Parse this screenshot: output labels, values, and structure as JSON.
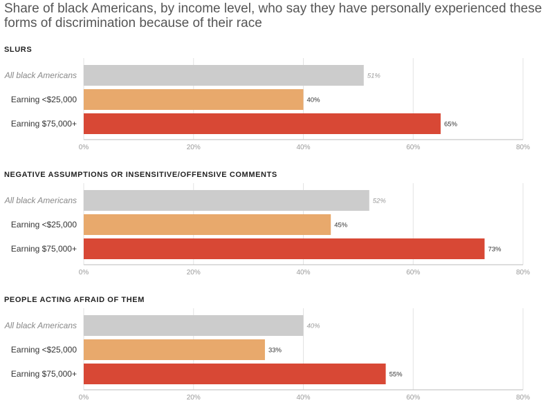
{
  "title": "Share of black Americans, by income level, who say they have personally experienced these forms of discrimination because of their race",
  "colors": {
    "All black Americans": "#cccccc",
    "Earning <$25,000": "#e8a96c",
    "Earning $75,000+": "#d84835",
    "grid": "#e3e3e3",
    "axis": "#bbbbbb"
  },
  "chart_data": [
    {
      "type": "bar",
      "orientation": "horizontal",
      "title": "SLURS",
      "categories": [
        "All black Americans",
        "Earning <$25,000",
        "Earning $75,000+"
      ],
      "values": [
        51,
        40,
        65
      ],
      "value_labels": [
        "51%",
        "40%",
        "65%"
      ],
      "xlim": [
        0,
        80
      ],
      "ticks": [
        0,
        20,
        40,
        60,
        80
      ],
      "tick_labels": [
        "0%",
        "20%",
        "40%",
        "60%",
        "80%"
      ],
      "grid": true
    },
    {
      "type": "bar",
      "orientation": "horizontal",
      "title": "NEGATIVE ASSUMPTIONS OR INSENSITIVE/OFFENSIVE COMMENTS",
      "categories": [
        "All black Americans",
        "Earning <$25,000",
        "Earning $75,000+"
      ],
      "values": [
        52,
        45,
        73
      ],
      "value_labels": [
        "52%",
        "45%",
        "73%"
      ],
      "xlim": [
        0,
        80
      ],
      "ticks": [
        0,
        20,
        40,
        60,
        80
      ],
      "tick_labels": [
        "0%",
        "20%",
        "40%",
        "60%",
        "80%"
      ],
      "grid": true
    },
    {
      "type": "bar",
      "orientation": "horizontal",
      "title": "PEOPLE ACTING AFRAID OF THEM",
      "categories": [
        "All black Americans",
        "Earning <$25,000",
        "Earning $75,000+"
      ],
      "values": [
        40,
        33,
        55
      ],
      "value_labels": [
        "40%",
        "33%",
        "55%"
      ],
      "xlim": [
        0,
        80
      ],
      "ticks": [
        0,
        20,
        40,
        60,
        80
      ],
      "tick_labels": [
        "0%",
        "20%",
        "40%",
        "60%",
        "80%"
      ],
      "grid": true
    }
  ]
}
